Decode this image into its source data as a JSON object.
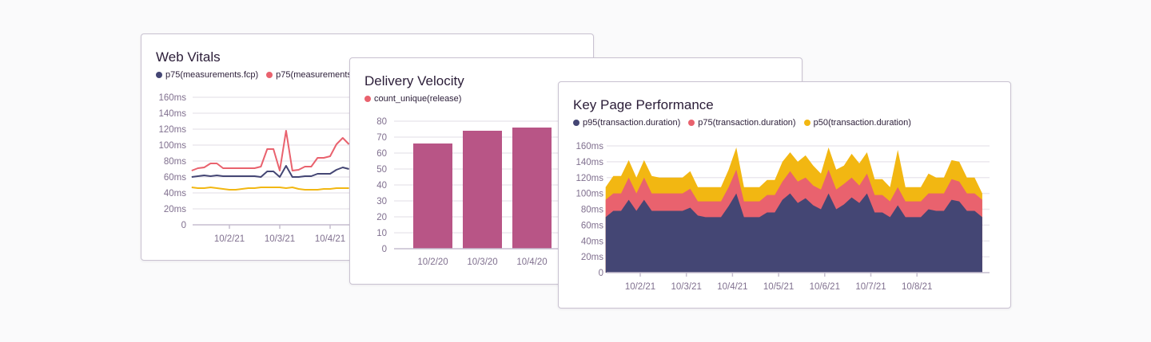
{
  "colors": {
    "p95": "#444674",
    "p75": "#e9626e",
    "p50": "#f2b712",
    "bar": "#b85586",
    "grid": "#ebe8ee",
    "axis": "#c6becf"
  },
  "chart_data": [
    {
      "id": "web-vitals",
      "type": "line",
      "title": "Web Vitals",
      "legend": [
        {
          "name": "p75(measurements.fcp)",
          "color": "#444674"
        },
        {
          "name": "p75(measurements",
          "color": "#e9626e"
        }
      ],
      "y_ticks": [
        "0",
        "20ms",
        "40ms",
        "60ms",
        "80ms",
        "100ms",
        "120ms",
        "140ms",
        "160ms"
      ],
      "ylim": [
        0,
        160
      ],
      "x_ticks": [
        "10/2/21",
        "10/3/21",
        "10/4/21"
      ],
      "x_start": "2021-10-01 06:00",
      "interval_hours": 3,
      "grid": true,
      "series": [
        {
          "color": "#444674",
          "values": [
            60,
            61,
            62,
            61,
            62,
            61,
            61,
            61,
            61,
            61,
            61,
            60,
            67,
            67,
            60,
            74,
            60,
            60,
            61,
            61,
            64,
            64,
            64,
            69,
            72,
            70
          ]
        },
        {
          "color": "#e9626e",
          "values": [
            68,
            71,
            72,
            77,
            77,
            71,
            71,
            71,
            71,
            71,
            71,
            73,
            95,
            95,
            68,
            118,
            68,
            69,
            73,
            73,
            84,
            84,
            86,
            101,
            109,
            101
          ]
        },
        {
          "color": "#f2b712",
          "values": [
            47,
            46,
            46,
            47,
            46,
            45,
            44,
            44,
            45,
            46,
            46,
            47,
            47,
            47,
            47,
            46,
            47,
            45,
            44,
            44,
            44,
            45,
            45,
            46,
            46,
            46
          ]
        }
      ]
    },
    {
      "id": "delivery-velocity",
      "type": "bar",
      "title": "Delivery Velocity",
      "legend": [
        {
          "name": "count_unique(release)",
          "color": "#e9626e"
        }
      ],
      "y_ticks": [
        "0",
        "10",
        "20",
        "30",
        "40",
        "50",
        "60",
        "70",
        "80"
      ],
      "ylim": [
        0,
        80
      ],
      "categories": [
        "10/2/20",
        "10/3/20",
        "10/4/20"
      ],
      "values": [
        66,
        74,
        76
      ],
      "grid": true
    },
    {
      "id": "key-page-performance",
      "type": "area",
      "title": "Key Page Performance",
      "legend": [
        {
          "name": "p95(transaction.duration)",
          "color": "#444674"
        },
        {
          "name": "p75(transaction.duration)",
          "color": "#e9626e"
        },
        {
          "name": "p50(transaction.duration)",
          "color": "#f2b712"
        }
      ],
      "y_ticks": [
        "0",
        "20ms",
        "40ms",
        "60ms",
        "80ms",
        "100ms",
        "120ms",
        "140ms",
        "160ms"
      ],
      "ylim": [
        0,
        160
      ],
      "x_ticks": [
        "10/2/21",
        "10/3/21",
        "10/4/21",
        "10/5/21",
        "10/6/21",
        "10/7/21",
        "10/8/21"
      ],
      "x_start": "2021-10-01 06:00",
      "interval_hours": 4,
      "grid": true,
      "series": [
        {
          "name": "p50(transaction.duration)",
          "color": "#f2b712",
          "values": [
            108,
            122,
            122,
            142,
            120,
            142,
            122,
            120,
            120,
            120,
            120,
            128,
            108,
            108,
            108,
            108,
            130,
            158,
            108,
            108,
            108,
            117,
            117,
            140,
            152,
            140,
            148,
            135,
            125,
            158,
            130,
            135,
            150,
            138,
            152,
            118,
            118,
            108,
            155,
            108,
            108,
            108,
            125,
            120,
            120,
            142,
            140,
            120,
            120,
            100
          ]
        },
        {
          "name": "p75(transaction.duration)",
          "color": "#e9626e",
          "values": [
            92,
            100,
            100,
            120,
            100,
            120,
            100,
            100,
            100,
            100,
            100,
            106,
            90,
            90,
            90,
            90,
            108,
            130,
            90,
            90,
            90,
            98,
            98,
            115,
            128,
            115,
            120,
            110,
            105,
            130,
            105,
            112,
            120,
            110,
            125,
            98,
            98,
            90,
            108,
            90,
            90,
            90,
            100,
            100,
            100,
            118,
            115,
            100,
            100,
            92
          ]
        },
        {
          "name": "p95(transaction.duration)",
          "color": "#444674",
          "values": [
            70,
            78,
            78,
            92,
            78,
            92,
            78,
            78,
            78,
            78,
            78,
            82,
            72,
            70,
            70,
            70,
            84,
            100,
            70,
            70,
            70,
            76,
            76,
            92,
            100,
            88,
            94,
            85,
            80,
            100,
            80,
            86,
            95,
            88,
            100,
            76,
            76,
            70,
            85,
            70,
            70,
            70,
            80,
            78,
            78,
            92,
            90,
            78,
            78,
            70
          ]
        }
      ]
    }
  ]
}
